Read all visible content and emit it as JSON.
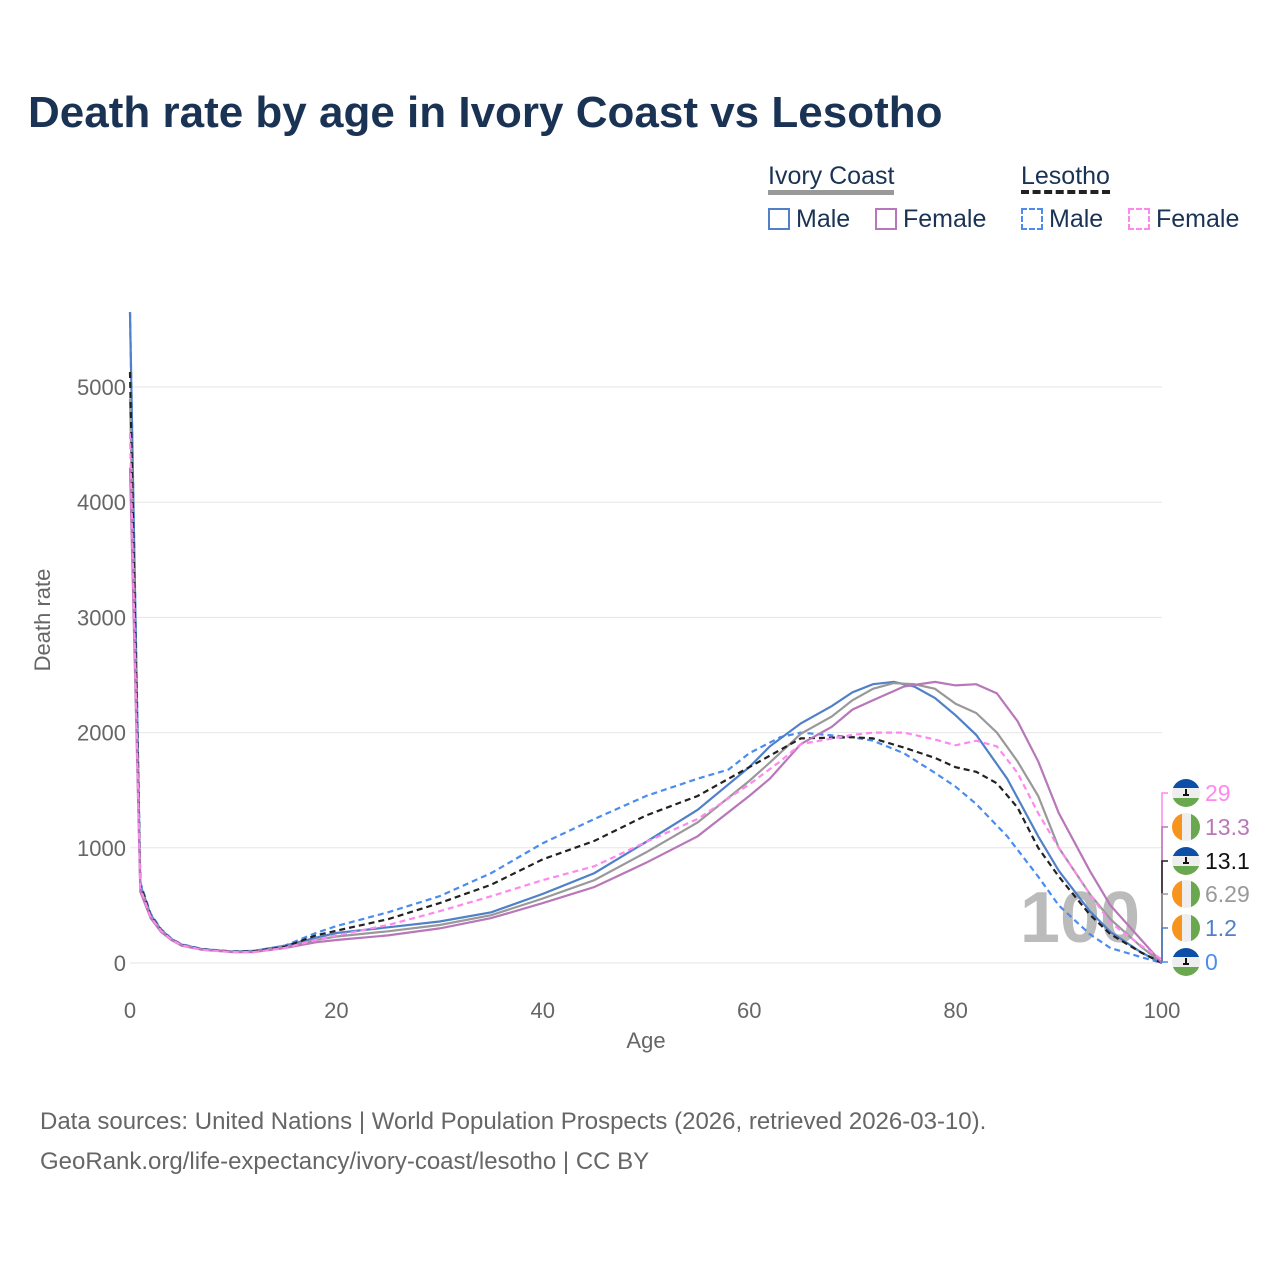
{
  "title": "Death rate by age in Ivory Coast vs Lesotho",
  "legend": {
    "group1": "Ivory Coast",
    "group2": "Lesotho",
    "male": "Male",
    "female": "Female"
  },
  "footer": {
    "line1": "Data sources: United Nations | World Population Prospects (2026, retrieved 2026-03-10).",
    "line2": "GeoRank.org/life-expectancy/ivory-coast/lesotho | CC BY"
  },
  "chart_data": {
    "type": "line",
    "xlabel": "Age",
    "ylabel": "Death rate",
    "xlim": [
      0,
      100
    ],
    "ylim": [
      0,
      5000
    ],
    "xticks": [
      0,
      20,
      40,
      60,
      80,
      100
    ],
    "yticks": [
      0,
      1000,
      2000,
      3000,
      4000,
      5000
    ],
    "watermark": "100",
    "series": [
      {
        "name": "Lesotho Female",
        "color": "#ff88ee",
        "dash": true,
        "end_label": "29",
        "flag": "lesotho",
        "ages": [
          0,
          1,
          2,
          3,
          4,
          5,
          7,
          10,
          12,
          15,
          18,
          20,
          25,
          30,
          35,
          40,
          45,
          50,
          55,
          60,
          63,
          65,
          70,
          72,
          75,
          78,
          80,
          82,
          84,
          86,
          88,
          90,
          93,
          95,
          98,
          100
        ],
        "values": [
          4600,
          650,
          400,
          280,
          205,
          155,
          115,
          95,
          95,
          130,
          200,
          240,
          330,
          450,
          580,
          720,
          840,
          1050,
          1250,
          1550,
          1750,
          1900,
          1980,
          2000,
          2000,
          1940,
          1890,
          1930,
          1880,
          1650,
          1300,
          1000,
          600,
          350,
          150,
          30
        ]
      },
      {
        "name": "Ivory Coast Female",
        "color": "#b877b8",
        "dash": false,
        "end_label": "13.3",
        "flag": "ivory-coast",
        "ages": [
          0,
          1,
          2,
          3,
          4,
          5,
          7,
          10,
          12,
          15,
          18,
          20,
          25,
          30,
          35,
          40,
          45,
          50,
          55,
          60,
          62,
          65,
          68,
          70,
          72,
          75,
          78,
          80,
          82,
          84,
          86,
          88,
          90,
          93,
          95,
          98,
          100
        ],
        "values": [
          4300,
          620,
          390,
          270,
          200,
          150,
          115,
          95,
          95,
          130,
          180,
          200,
          240,
          300,
          390,
          520,
          660,
          870,
          1100,
          1450,
          1600,
          1900,
          2050,
          2200,
          2280,
          2400,
          2440,
          2410,
          2420,
          2340,
          2100,
          1750,
          1300,
          800,
          500,
          200,
          0
        ]
      },
      {
        "name": "Lesotho",
        "color": "#222222",
        "dash": true,
        "end_label": "13.1",
        "flag": "lesotho",
        "ages": [
          0,
          1,
          2,
          3,
          4,
          5,
          7,
          10,
          12,
          15,
          18,
          20,
          25,
          30,
          35,
          40,
          45,
          50,
          55,
          60,
          63,
          65,
          70,
          72,
          75,
          78,
          80,
          82,
          84,
          86,
          88,
          90,
          93,
          95,
          98,
          100
        ],
        "values": [
          5130,
          680,
          410,
          285,
          208,
          158,
          118,
          98,
          100,
          140,
          240,
          280,
          380,
          520,
          680,
          900,
          1060,
          1280,
          1450,
          1700,
          1850,
          1950,
          1960,
          1950,
          1870,
          1780,
          1700,
          1660,
          1560,
          1350,
          1000,
          750,
          420,
          250,
          90,
          0
        ]
      },
      {
        "name": "Ivory Coast",
        "color": "#999999",
        "dash": false,
        "end_label": "6.29",
        "flag": "ivory-coast",
        "ages": [
          0,
          1,
          2,
          3,
          4,
          5,
          7,
          10,
          12,
          15,
          18,
          20,
          25,
          30,
          35,
          40,
          45,
          50,
          55,
          60,
          62,
          65,
          68,
          70,
          72,
          74,
          76,
          78,
          80,
          82,
          84,
          86,
          88,
          90,
          93,
          95,
          98,
          100
        ],
        "values": [
          4900,
          650,
          405,
          280,
          205,
          155,
          118,
          98,
          100,
          140,
          200,
          230,
          275,
          330,
          415,
          560,
          720,
          960,
          1220,
          1580,
          1740,
          1990,
          2140,
          2280,
          2380,
          2430,
          2420,
          2380,
          2250,
          2170,
          2000,
          1750,
          1450,
          1000,
          600,
          380,
          140,
          0
        ]
      },
      {
        "name": "Ivory Coast Male",
        "color": "#5080c8",
        "dash": false,
        "end_label": "1.2",
        "flag": "ivory-coast",
        "ages": [
          0,
          1,
          2,
          3,
          4,
          5,
          7,
          10,
          12,
          15,
          18,
          20,
          25,
          30,
          35,
          40,
          45,
          50,
          55,
          60,
          62,
          65,
          68,
          70,
          72,
          74,
          76,
          78,
          80,
          82,
          85,
          88,
          90,
          93,
          95,
          98,
          100
        ],
        "values": [
          5650,
          680,
          420,
          290,
          210,
          160,
          120,
          100,
          105,
          150,
          220,
          260,
          310,
          360,
          440,
          600,
          780,
          1050,
          1330,
          1700,
          1880,
          2080,
          2230,
          2350,
          2420,
          2440,
          2400,
          2300,
          2150,
          1980,
          1600,
          1100,
          800,
          450,
          270,
          90,
          0
        ]
      },
      {
        "name": "Lesotho Male",
        "color": "#4a8cf0",
        "dash": true,
        "end_label": "0",
        "flag": "lesotho",
        "ages": [
          0,
          1,
          2,
          3,
          4,
          5,
          7,
          10,
          12,
          15,
          18,
          20,
          25,
          30,
          35,
          40,
          45,
          50,
          55,
          58,
          60,
          63,
          65,
          70,
          72,
          75,
          78,
          80,
          82,
          85,
          88,
          90,
          93,
          95,
          98,
          100
        ],
        "values": [
          5650,
          700,
          430,
          295,
          212,
          162,
          122,
          100,
          105,
          150,
          260,
          320,
          440,
          580,
          780,
          1040,
          1250,
          1450,
          1600,
          1680,
          1820,
          1960,
          2000,
          1960,
          1930,
          1820,
          1650,
          1530,
          1380,
          1100,
          750,
          500,
          250,
          130,
          50,
          0
        ]
      }
    ]
  }
}
